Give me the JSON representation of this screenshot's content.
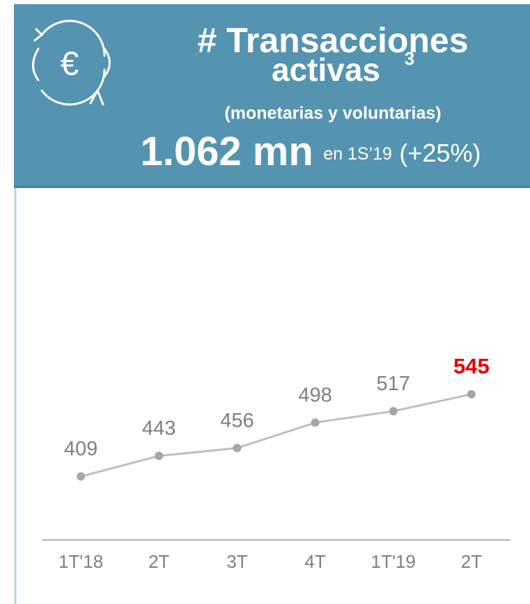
{
  "header": {
    "title_line1": "# Transacciones",
    "title_line2": "activas",
    "footnote": "3",
    "subtitle": "(monetarias y voluntarias)",
    "headline_value": "1.062 mn",
    "headline_period": "en 1S’19",
    "headline_change": "(+25%)"
  },
  "chart_data": {
    "type": "line",
    "categories": [
      "1T'18",
      "2T",
      "3T",
      "4T",
      "1T'19",
      "2T"
    ],
    "values": [
      409,
      443,
      456,
      498,
      517,
      545
    ],
    "color": "#bfbfbf",
    "marker_color": "#a6a6a6",
    "label_color": "#7f7f7f",
    "highlight_index": 5,
    "highlight_color": "#e00000",
    "ylim": [
      304,
      863
    ]
  }
}
